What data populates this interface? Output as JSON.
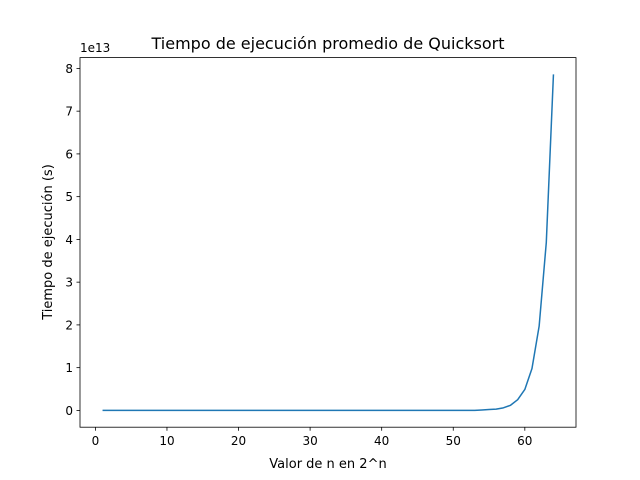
{
  "chart_data": {
    "type": "line",
    "title": "Tiempo de ejecución promedio de Quicksort",
    "x_label": "Valor de n en 2^n",
    "y_label": "Tiempo de ejecución (s)",
    "y_offset_label": "1e13",
    "x": [
      1,
      2,
      3,
      4,
      5,
      6,
      7,
      8,
      9,
      10,
      11,
      12,
      13,
      14,
      15,
      16,
      17,
      18,
      19,
      20,
      21,
      22,
      23,
      24,
      25,
      26,
      27,
      28,
      29,
      30,
      31,
      32,
      33,
      34,
      35,
      36,
      37,
      38,
      39,
      40,
      41,
      42,
      43,
      44,
      45,
      46,
      47,
      48,
      49,
      50,
      51,
      52,
      53,
      54,
      55,
      56,
      57,
      58,
      59,
      60,
      61,
      62,
      63,
      64
    ],
    "series": [
      {
        "color": "#1f77b4",
        "values": [
          0,
          0,
          0,
          0,
          0,
          0,
          0,
          0,
          0,
          0,
          0,
          0,
          0,
          0,
          0,
          0,
          0,
          0,
          0,
          0,
          0,
          0,
          0,
          0,
          0,
          0,
          0,
          0,
          0,
          0,
          0,
          0,
          0,
          0,
          0,
          0,
          0,
          0,
          0,
          0,
          0,
          0,
          0,
          0,
          0,
          0,
          0,
          0,
          0,
          0,
          0,
          0,
          0,
          0.01,
          0.02,
          0.03,
          0.06,
          0.12,
          0.25,
          0.49,
          0.98,
          1.97,
          3.93,
          7.86
        ]
      }
    ],
    "xlim": [
      -2.15,
      67.15
    ],
    "xticks": [
      0,
      10,
      20,
      30,
      40,
      50,
      60
    ],
    "ylim": [
      -0.393,
      8.253
    ],
    "yticks": [
      0,
      1,
      2,
      3,
      4,
      5,
      6,
      7,
      8
    ],
    "grid": false
  }
}
